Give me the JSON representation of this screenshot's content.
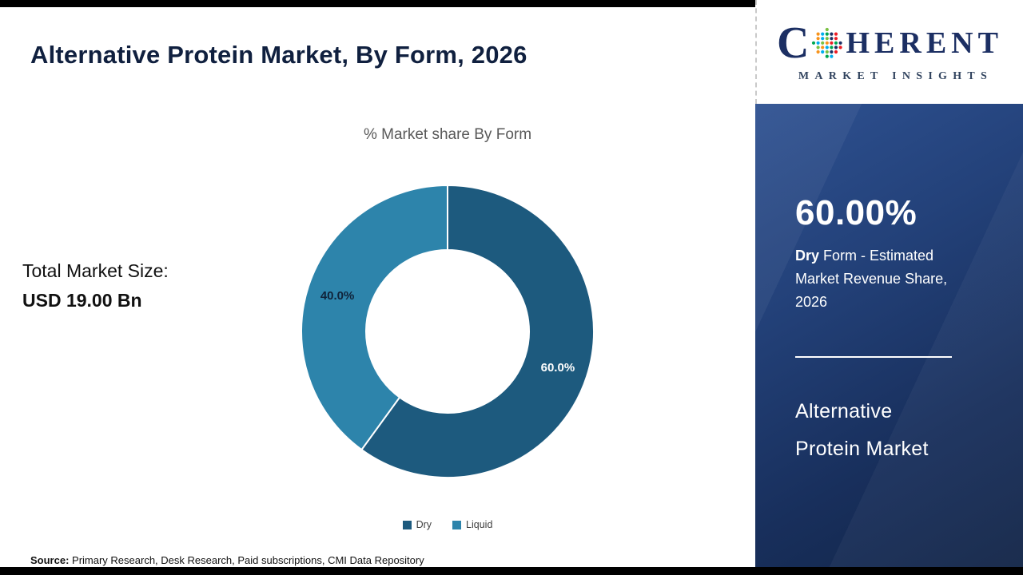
{
  "title": "Alternative Protein Market, By Form, 2026",
  "chart_data": {
    "type": "pie",
    "subtype": "donut",
    "title": "% Market share By Form",
    "categories": [
      "Dry",
      "Liquid"
    ],
    "values": [
      60.0,
      40.0
    ],
    "labels": [
      "60.0%",
      "40.0%"
    ],
    "colors": [
      "#1d5a7e",
      "#2d84ab"
    ],
    "label_colors": [
      "#ffffff",
      "#10233a"
    ],
    "legend_position": "bottom"
  },
  "total_market": {
    "label": "Total Market Size:",
    "value": "USD 19.00 Bn"
  },
  "source": {
    "label": "Source:",
    "text": " Primary Research, Desk Research, Paid subscriptions, CMI Data Repository"
  },
  "logo": {
    "c": "C",
    "rest": "HERENT",
    "tagline": "MARKET INSIGHTS",
    "globe_icon": "dotted-globe-icon",
    "globe_colors": [
      "#7ac143",
      "#00a651",
      "#f7941d",
      "#1c2f63",
      "#00aeef",
      "#ed1c24"
    ]
  },
  "sidebar": {
    "stat": "60.00%",
    "desc_bold": "Dry",
    "desc_rest": " Form - Estimated Market Revenue Share, 2026",
    "market_line1": "Alternative",
    "market_line2": "Protein Market"
  }
}
